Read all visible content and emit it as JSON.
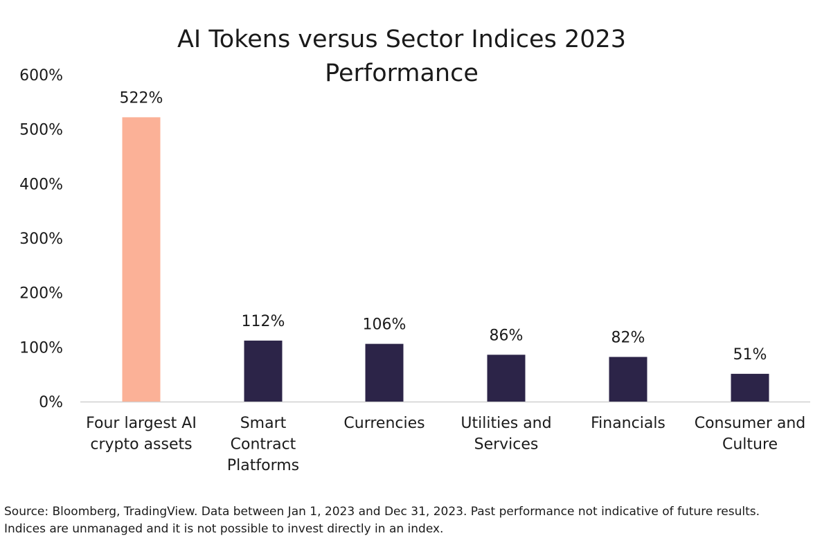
{
  "chart_data": {
    "type": "bar",
    "title": [
      "AI Tokens versus Sector Indices 2023",
      "Performance"
    ],
    "categories": [
      [
        "Four largest AI",
        "crypto assets"
      ],
      [
        "Smart",
        "Contract",
        "Platforms"
      ],
      [
        "Currencies"
      ],
      [
        "Utilities and",
        "Services"
      ],
      [
        "Financials"
      ],
      [
        "Consumer and",
        "Culture"
      ]
    ],
    "values": [
      522,
      112,
      106,
      86,
      82,
      51
    ],
    "data_labels": [
      "522%",
      "112%",
      "106%",
      "86%",
      "82%",
      "51%"
    ],
    "bar_colors": [
      "#fbb197",
      "#2c2448",
      "#2c2448",
      "#2c2448",
      "#2c2448",
      "#2c2448"
    ],
    "ylim": [
      0,
      600
    ],
    "yticks": [
      0,
      100,
      200,
      300,
      400,
      500,
      600
    ],
    "ytick_labels": [
      "0%",
      "100%",
      "200%",
      "300%",
      "400%",
      "500%",
      "600%"
    ],
    "xlabel": "",
    "ylabel": "",
    "grid": false,
    "legend": "none"
  },
  "axis_color": "#d0d0d0",
  "source": {
    "line1": "Source: Bloomberg, TradingView. Data between Jan 1, 2023 and Dec 31, 2023. Past performance not indicative of future results.",
    "line2": "Indices are unmanaged and it is not possible to invest directly in an index."
  }
}
